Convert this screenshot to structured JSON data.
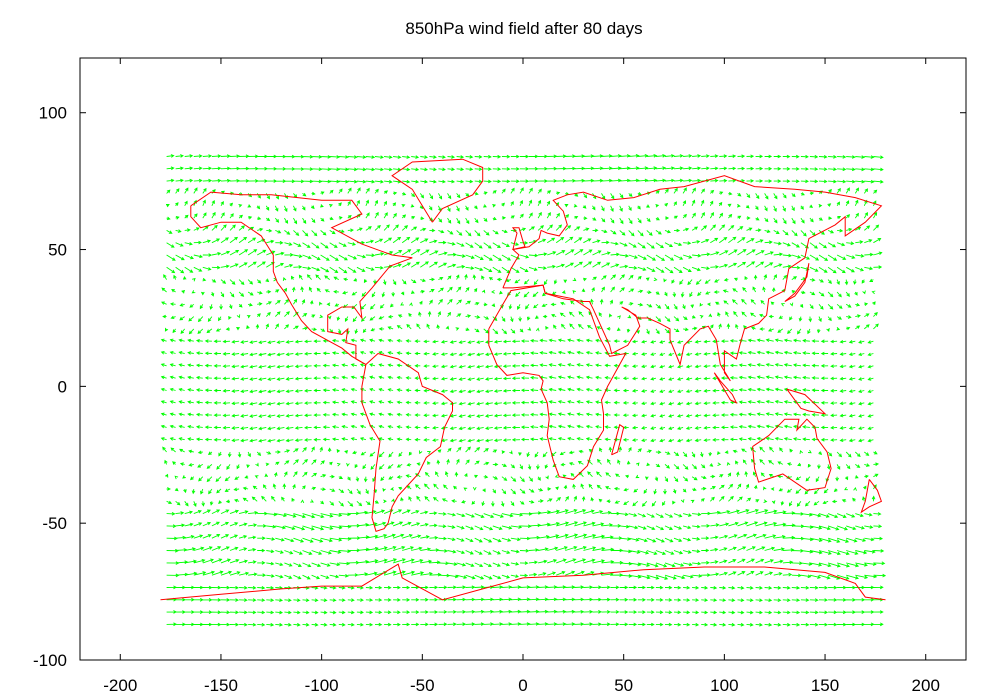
{
  "chart_data": {
    "type": "vector-field",
    "title": "850hPa wind field after 80 days",
    "xlabel": "",
    "ylabel": "",
    "xlim": [
      -220,
      220
    ],
    "ylim": [
      -100,
      120
    ],
    "xticks": [
      -200,
      -150,
      -100,
      -50,
      0,
      50,
      100,
      150,
      200
    ],
    "yticks": [
      100,
      50,
      0,
      -50,
      -100
    ],
    "grid": false,
    "legend": "none",
    "series": [
      {
        "role": "wind",
        "color": "#00ff00",
        "style": "arrows"
      },
      {
        "role": "coastline",
        "color": "#ff0000",
        "style": "line"
      }
    ]
  }
}
